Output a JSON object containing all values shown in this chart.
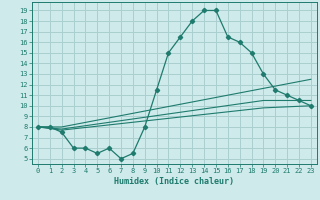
{
  "xlabel": "Humidex (Indice chaleur)",
  "background_color": "#ceeaea",
  "grid_color": "#aacfcf",
  "line_color": "#1e7b6e",
  "x_ticks": [
    0,
    1,
    2,
    3,
    4,
    5,
    6,
    7,
    8,
    9,
    10,
    11,
    12,
    13,
    14,
    15,
    16,
    17,
    18,
    19,
    20,
    21,
    22,
    23
  ],
  "y_ticks": [
    5,
    6,
    7,
    8,
    9,
    10,
    11,
    12,
    13,
    14,
    15,
    16,
    17,
    18,
    19
  ],
  "ylim": [
    4.5,
    19.8
  ],
  "xlim": [
    -0.5,
    23.5
  ],
  "series1_x": [
    0,
    1,
    2,
    3,
    4,
    5,
    6,
    7,
    8,
    9,
    10,
    11,
    12,
    13,
    14,
    15,
    16,
    17,
    18,
    19,
    20,
    21,
    22,
    23
  ],
  "series1_y": [
    8,
    8,
    7.5,
    6,
    6,
    5.5,
    6,
    5,
    5.5,
    8,
    11.5,
    15,
    16.5,
    18,
    19,
    19,
    16.5,
    16,
    15,
    13,
    11.5,
    11,
    10.5,
    10
  ],
  "series2_x": [
    0,
    2,
    23
  ],
  "series2_y": [
    8,
    8,
    12.5
  ],
  "series3_x": [
    0,
    2,
    19,
    23
  ],
  "series3_y": [
    8,
    7.8,
    10.5,
    10.5
  ],
  "series4_x": [
    0,
    2,
    19,
    23
  ],
  "series4_y": [
    8,
    7.7,
    9.8,
    10.0
  ]
}
